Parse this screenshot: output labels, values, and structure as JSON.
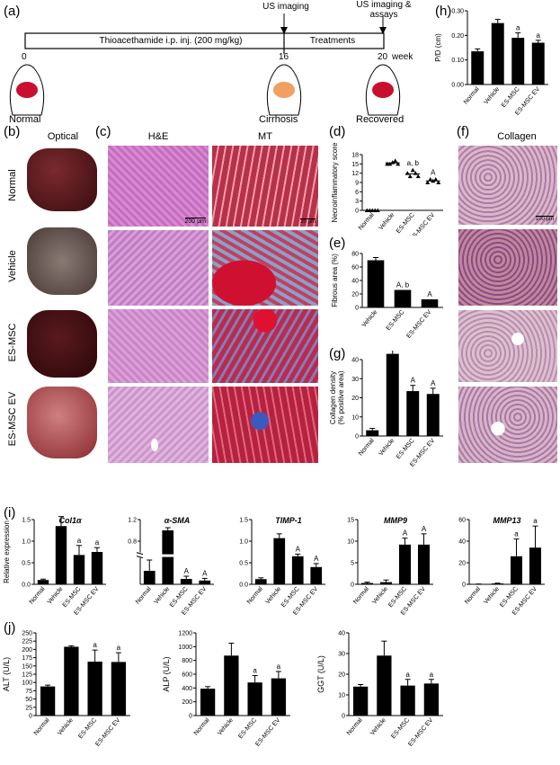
{
  "panel_a": {
    "label": "(a)",
    "timeline_bar_text": "Thioacethamide i.p. inj. (200 mg/kg)",
    "treatments_text": "Treatments",
    "event1": "US imaging",
    "event2_line1": "US imaging &",
    "event2_line2": "assays",
    "tick0": "0",
    "tick16": "16",
    "tick20": "20",
    "unit": "week",
    "stage_normal": "Normal",
    "stage_cirrhosis": "Cirrhosis",
    "stage_recovered": "Recovered",
    "colors": {
      "normal_liver": "#c8102e",
      "cirrhosis_liver": "#f0a060",
      "recovered_liver": "#c8102e"
    }
  },
  "panel_b": {
    "label": "(b)",
    "header": "Optical"
  },
  "panel_c": {
    "label": "(c)",
    "header_he": "H&E",
    "header_mt": "MT",
    "scale_he": "200 μm",
    "scale_mt": "20 μm"
  },
  "panel_f": {
    "label": "(f)",
    "header": "Collagen",
    "scale": "100 μm"
  },
  "rows": [
    "Normal",
    "Vehicle",
    "ES-MSC",
    "ES-MSC EV"
  ],
  "panel_d": {
    "label": "(d)"
  },
  "panel_e": {
    "label": "(e)"
  },
  "panel_g": {
    "label": "(g)"
  },
  "panel_h": {
    "label": "(h)"
  },
  "panel_i": {
    "label": "(i)"
  },
  "panel_j": {
    "label": "(j)"
  },
  "chart_data": [
    {
      "id": "h",
      "type": "bar",
      "categories": [
        "Normal",
        "Vehicle",
        "ES-MSC",
        "ES-MSC EV"
      ],
      "values": [
        0.135,
        0.25,
        0.19,
        0.17
      ],
      "errors": [
        0.01,
        0.015,
        0.02,
        0.01
      ],
      "sig": [
        "",
        "",
        "a",
        "a"
      ],
      "ylabel": "P/D (cm)",
      "ylim": [
        0,
        0.3
      ],
      "yticks": [
        "0.00",
        "0.10",
        "0.20",
        "0.30"
      ]
    },
    {
      "id": "d",
      "type": "scatter",
      "categories": [
        "Normal",
        "Vehicle",
        "ES-MSC",
        "ES-MSC EV"
      ],
      "values": [
        [
          0,
          0,
          0,
          0,
          0
        ],
        [
          15,
          15,
          15.5,
          16,
          15
        ],
        [
          12,
          11,
          13,
          12,
          11
        ],
        [
          9,
          10,
          9.5,
          10,
          9
        ]
      ],
      "sig": [
        "",
        "",
        "a, b",
        "A"
      ],
      "ylabel": "Necroinflammatory score",
      "ylim": [
        0,
        18
      ],
      "yticks": [
        "0",
        "3",
        "6",
        "9",
        "12",
        "15",
        "18"
      ]
    },
    {
      "id": "e",
      "type": "bar",
      "categories": [
        "Vehicle",
        "ES-MSC",
        "ES-MSC EV"
      ],
      "values": [
        70,
        26,
        12
      ],
      "errors": [
        4,
        0,
        0
      ],
      "sig": [
        "",
        "A, b",
        "A"
      ],
      "ylabel": "Fibrous area (%)",
      "ylim": [
        0,
        80
      ],
      "yticks": [
        "0",
        "20",
        "40",
        "60",
        "80"
      ]
    },
    {
      "id": "g",
      "type": "bar",
      "categories": [
        "Normal",
        "Vehicle",
        "ES-MSC",
        "ES-MSC EV"
      ],
      "values": [
        3,
        43,
        23.5,
        22
      ],
      "errors": [
        1,
        4,
        3,
        3
      ],
      "sig": [
        "",
        "",
        "A",
        "A"
      ],
      "ylabel": "Collagen density (% positive area)",
      "ylim": [
        0,
        40
      ],
      "yticks": [
        "0",
        "10",
        "20",
        "30",
        "40"
      ]
    },
    {
      "id": "col1a",
      "title": "Col1α",
      "type": "bar",
      "categories": [
        "Normal",
        "Vehicle",
        "ES-MSC",
        "ES-MSC EV"
      ],
      "values": [
        0.1,
        1.35,
        0.68,
        0.75
      ],
      "errors": [
        0.02,
        0.22,
        0.22,
        0.1
      ],
      "sig": [
        "",
        "",
        "a",
        "a"
      ],
      "ylabel": "Relative expression",
      "ylim": [
        0,
        1.5
      ],
      "yticks": [
        "0.0",
        "0.5",
        "1.0",
        "1.5"
      ]
    },
    {
      "id": "asma",
      "title": "α-SMA",
      "type": "bar",
      "categories": [
        "Normal",
        "Vehicle",
        "ES-MSC",
        "ES-MSC EV"
      ],
      "values": [
        0.25,
        1.0,
        0.1,
        0.07
      ],
      "errors": [
        0.2,
        0.05,
        0.05,
        0.04
      ],
      "sig": [
        "",
        "",
        "A",
        "A"
      ],
      "ylim": [
        0,
        1.2
      ],
      "yticks": [
        "0.8",
        "1.2"
      ]
    },
    {
      "id": "timp1",
      "title": "TIMP-1",
      "type": "bar",
      "categories": [
        "Normal",
        "Vehicle",
        "ES-MSC",
        "ES-MSC EV"
      ],
      "values": [
        0.12,
        1.07,
        0.65,
        0.4
      ],
      "errors": [
        0.03,
        0.1,
        0.05,
        0.08
      ],
      "sig": [
        "",
        "",
        "A",
        "A"
      ],
      "ylim": [
        0,
        1.5
      ],
      "yticks": [
        "0.0",
        "0.5",
        "1.0",
        "1.5"
      ]
    },
    {
      "id": "mmp9",
      "title": "MMP9",
      "type": "bar",
      "categories": [
        "Normal",
        "Vehicle",
        "ES-MSC",
        "ES-MSC EV"
      ],
      "values": [
        0.3,
        0.5,
        9.2,
        9.2
      ],
      "errors": [
        0.2,
        0.5,
        1.5,
        2.5
      ],
      "sig": [
        "",
        "",
        "A",
        "A"
      ],
      "ylim": [
        0,
        15
      ],
      "yticks": [
        "0",
        "5",
        "10",
        "15"
      ]
    },
    {
      "id": "mmp13",
      "title": "MMP13",
      "type": "bar",
      "categories": [
        "Normal",
        "Vehicle",
        "ES-MSC",
        "ES-MSC EV"
      ],
      "values": [
        0.2,
        0.8,
        26,
        34
      ],
      "errors": [
        0.1,
        0.3,
        16,
        20
      ],
      "sig": [
        "",
        "",
        "a",
        "a"
      ],
      "ylim": [
        0,
        60
      ],
      "yticks": [
        "0",
        "20",
        "40",
        "60"
      ]
    },
    {
      "id": "alt",
      "type": "bar",
      "categories": [
        "Normal",
        "Vehicle",
        "ES-MSC",
        "ES-MSC EV"
      ],
      "values": [
        88,
        208,
        163,
        162
      ],
      "errors": [
        4,
        3,
        35,
        28
      ],
      "sig": [
        "",
        "",
        "a",
        "a"
      ],
      "ylabel": "ALT (U/L)",
      "ylim": [
        0,
        250
      ],
      "yticks": [
        "0",
        "25",
        "50",
        "75",
        "100",
        "125",
        "150",
        "175",
        "200",
        "225",
        "250"
      ]
    },
    {
      "id": "alp",
      "type": "bar",
      "categories": [
        "Normal",
        "Vehicle",
        "ES-MSC",
        "ES-MSC EV"
      ],
      "values": [
        390,
        870,
        480,
        540
      ],
      "errors": [
        30,
        180,
        100,
        100
      ],
      "sig": [
        "",
        "",
        "a",
        "a"
      ],
      "ylabel": "ALP (U/L)",
      "ylim": [
        0,
        1200
      ],
      "yticks": [
        "0",
        "200",
        "400",
        "600",
        "800",
        "1000",
        "1200"
      ]
    },
    {
      "id": "ggt",
      "type": "bar",
      "categories": [
        "Normal",
        "Vehicle",
        "ES-MSC",
        "ES-MSC EV"
      ],
      "values": [
        14,
        29,
        14.5,
        15.5
      ],
      "errors": [
        1,
        7,
        3,
        2
      ],
      "sig": [
        "",
        "",
        "a",
        "a"
      ],
      "ylabel": "GGT (U/L)",
      "ylim": [
        0,
        40
      ],
      "yticks": [
        "0",
        "10",
        "20",
        "30",
        "40"
      ]
    }
  ]
}
